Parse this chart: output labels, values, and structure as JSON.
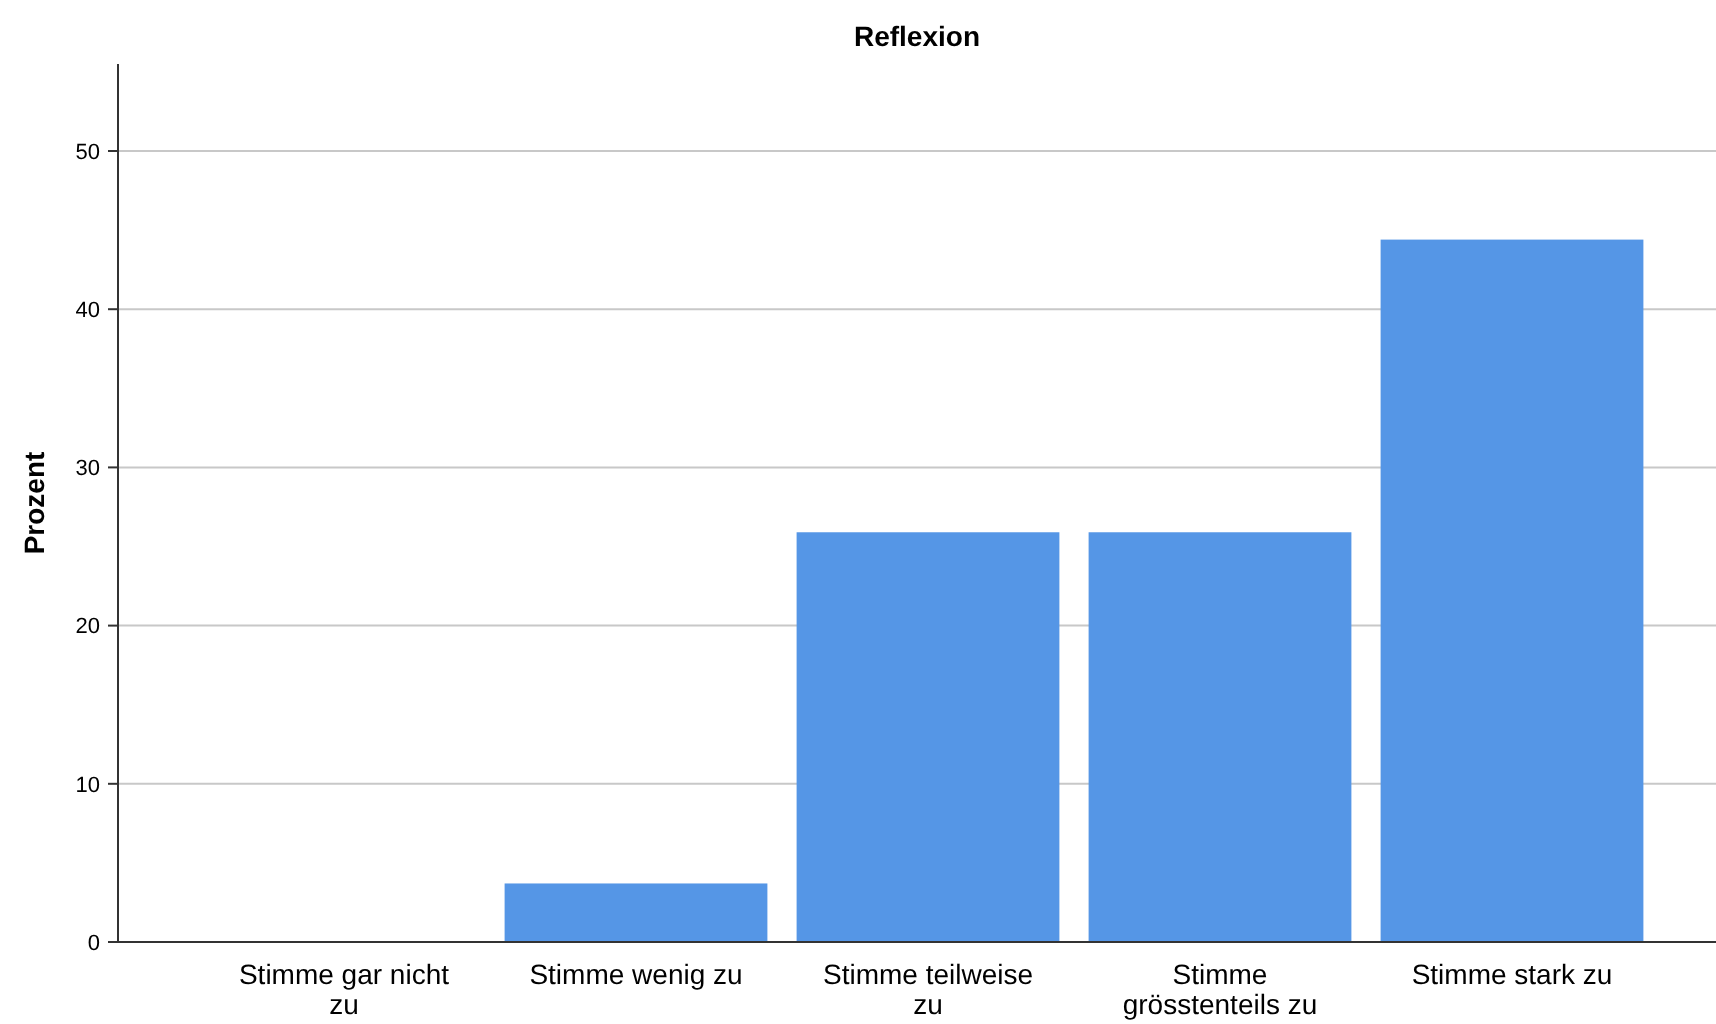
{
  "chart_data": {
    "type": "bar",
    "title": "Reflexion",
    "ylabel": "Prozent",
    "categories": [
      "Stimme gar nicht zu",
      "Stimme wenig zu",
      "Stimme teilweise zu",
      "Stimme grösstenteils zu",
      "Stimme stark zu"
    ],
    "values": [
      0,
      3.7,
      25.9,
      25.9,
      44.4
    ],
    "color": "#5596e6",
    "ylim": [
      0,
      55.5
    ],
    "yticks": [
      0,
      10,
      20,
      30,
      40,
      50
    ],
    "grid": "y"
  }
}
